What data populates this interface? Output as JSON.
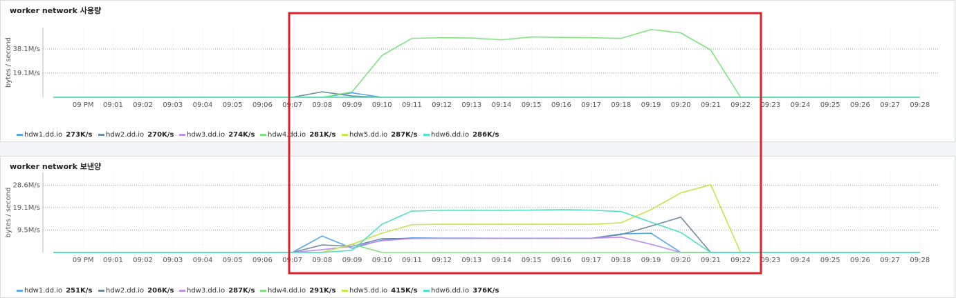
{
  "chart_data": [
    {
      "type": "line",
      "title": "worker network 사용량",
      "y_label": "bytes / second",
      "categories": [
        null,
        "09 PM",
        "09:01",
        "09:02",
        "09:03",
        "09:04",
        "09:05",
        "09:06",
        "09:07",
        "09:08",
        "09:09",
        "09:10",
        "09:11",
        "09:12",
        "09:13",
        "09:14",
        "09:15",
        "09:16",
        "09:17",
        "09:18",
        "09:19",
        "09:20",
        "09:21",
        "09:22",
        "09:23",
        "09:24",
        "09:25",
        "09:26",
        "09:27",
        "09:28"
      ],
      "ylim": [
        0,
        55
      ],
      "yticks": [
        {
          "value": 19.1,
          "label": "19.1M/s"
        },
        {
          "value": 38.1,
          "label": "38.1M/s"
        }
      ],
      "grid": true,
      "series": [
        {
          "name": "hdw1.dd.io",
          "current": "273K/s",
          "color": "#56a6f0",
          "values": [
            0,
            0,
            0,
            0,
            0,
            0,
            0,
            0,
            0,
            0,
            3.5,
            0,
            0,
            0,
            0,
            0,
            0,
            0,
            0,
            0,
            0,
            0,
            0,
            0,
            0,
            0,
            0,
            0,
            0,
            0
          ]
        },
        {
          "name": "hdw2.dd.io",
          "current": "270K/s",
          "color": "#6e8ca0",
          "values": [
            0,
            0,
            0,
            0,
            0,
            0,
            0,
            0,
            0,
            4.3,
            1,
            0,
            0,
            0,
            0,
            0,
            0,
            0,
            0,
            0,
            0,
            0,
            0,
            0,
            0,
            0,
            0,
            0,
            0,
            0
          ]
        },
        {
          "name": "hdw3.dd.io",
          "current": "274K/s",
          "color": "#c38cf0",
          "values": [
            0,
            0,
            0,
            0,
            0,
            0,
            0,
            0,
            0,
            0,
            0,
            0,
            0,
            0,
            0,
            0,
            0,
            0,
            0,
            0,
            0,
            0,
            0,
            0,
            0,
            0,
            0,
            0,
            0,
            0
          ]
        },
        {
          "name": "hdw4.dd.io",
          "current": "281K/s",
          "color": "#7ee57e",
          "values": [
            0,
            0,
            0,
            0,
            0,
            0,
            0,
            0,
            0,
            0,
            4.3,
            33,
            46.5,
            47,
            46.8,
            45.4,
            47.6,
            47.3,
            47,
            46.5,
            53.5,
            50.8,
            37.3,
            0,
            0,
            0,
            0,
            0,
            0,
            0
          ]
        },
        {
          "name": "hdw5.dd.io",
          "current": "287K/s",
          "color": "#c9e34c",
          "values": [
            0,
            0,
            0,
            0,
            0,
            0,
            0,
            0,
            0,
            0,
            0,
            0,
            0,
            0,
            0,
            0,
            0,
            0,
            0,
            0,
            0,
            0,
            0,
            0,
            0,
            0,
            0,
            0,
            0,
            0
          ]
        },
        {
          "name": "hdw6.dd.io",
          "current": "286K/s",
          "color": "#4de2c5",
          "values": [
            0,
            0,
            0,
            0,
            0,
            0,
            0,
            0,
            0,
            0,
            0,
            0,
            0,
            0,
            0,
            0,
            0,
            0,
            0,
            0,
            0,
            0,
            0,
            0,
            0,
            0,
            0,
            0,
            0,
            0
          ]
        }
      ]
    },
    {
      "type": "line",
      "title": "worker network 보낸양",
      "y_label": "bytes / second",
      "categories": [
        null,
        "09 PM",
        "09:01",
        "09:02",
        "09:03",
        "09:04",
        "09:05",
        "09:06",
        "09:07",
        "09:08",
        "09:09",
        "09:10",
        "09:11",
        "09:12",
        "09:13",
        "09:14",
        "09:15",
        "09:16",
        "09:17",
        "09:18",
        "09:19",
        "09:20",
        "09:21",
        "09:22",
        "09:23",
        "09:24",
        "09:25",
        "09:26",
        "09:27",
        "09:28"
      ],
      "ylim": [
        0,
        34
      ],
      "yticks": [
        {
          "value": 9.5,
          "label": "9.5M/s"
        },
        {
          "value": 19.1,
          "label": "19.1M/s"
        },
        {
          "value": 28.6,
          "label": "28.6M/s"
        }
      ],
      "grid": true,
      "series": [
        {
          "name": "hdw1.dd.io",
          "current": "251K/s",
          "color": "#56a6f0",
          "values": [
            0,
            0,
            0,
            0,
            0,
            0,
            0,
            0,
            0,
            7,
            1.8,
            5.3,
            6.2,
            6.1,
            6.1,
            6,
            6,
            6,
            6,
            7.9,
            8.2,
            0,
            0,
            0,
            0,
            0,
            0,
            0,
            0,
            0
          ]
        },
        {
          "name": "hdw2.dd.io",
          "current": "206K/s",
          "color": "#6e8ca0",
          "values": [
            0,
            0,
            0,
            0,
            0,
            0,
            0,
            0,
            0,
            3.2,
            2.6,
            5.9,
            6,
            6,
            6,
            6,
            6,
            6,
            6,
            7.6,
            11.2,
            15,
            0,
            0,
            0,
            0,
            0,
            0,
            0,
            0
          ]
        },
        {
          "name": "hdw3.dd.io",
          "current": "287K/s",
          "color": "#c38cf0",
          "values": [
            0,
            0,
            0,
            0,
            0,
            0,
            0,
            0,
            0,
            1.2,
            2.6,
            5,
            5.9,
            6,
            6,
            6,
            6,
            6,
            6,
            6.5,
            3.5,
            0,
            0,
            0,
            0,
            0,
            0,
            0,
            0,
            0
          ]
        },
        {
          "name": "hdw4.dd.io",
          "current": "291K/s",
          "color": "#7ee57e",
          "values": [
            0,
            0,
            0,
            0,
            0,
            0,
            0,
            0,
            0,
            0,
            3.5,
            0,
            0,
            0,
            0,
            0,
            0,
            0,
            0,
            0,
            0,
            0,
            0,
            0,
            0,
            0,
            0,
            0,
            0,
            0
          ]
        },
        {
          "name": "hdw5.dd.io",
          "current": "415K/s",
          "color": "#c9e34c",
          "values": [
            0,
            0,
            0,
            0,
            0,
            0,
            0,
            0,
            0,
            0,
            3.5,
            8.2,
            11.8,
            12,
            12,
            12,
            12,
            12,
            12,
            12.6,
            18.2,
            25.3,
            28.8,
            0,
            0,
            0,
            0,
            0,
            0,
            0
          ]
        },
        {
          "name": "hdw6.dd.io",
          "current": "376K/s",
          "color": "#4de2c5",
          "values": [
            0,
            0,
            0,
            0,
            0,
            0,
            0,
            0,
            0,
            0,
            0.9,
            12,
            17.6,
            17.9,
            17.9,
            17.9,
            18,
            18.2,
            18,
            17.4,
            12.9,
            8.5,
            0,
            0,
            0,
            0,
            0,
            0,
            0,
            0
          ]
        }
      ]
    }
  ]
}
